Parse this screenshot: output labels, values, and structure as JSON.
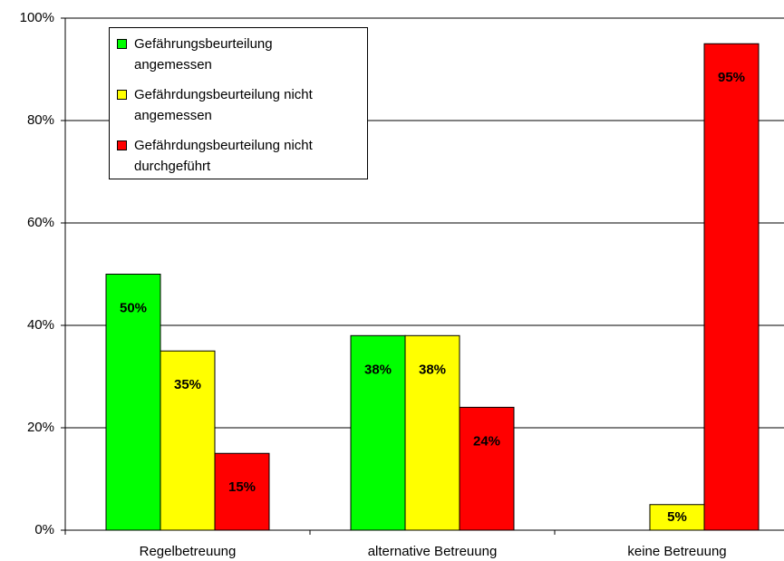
{
  "chart_data": {
    "type": "bar",
    "categories": [
      "Regelbetreuung",
      "alternative Betreuung",
      "keine Betreuung"
    ],
    "series": [
      {
        "name": "Gefährungsbeurteilung angemessen",
        "color": "#00ff00",
        "values": [
          50,
          38,
          null
        ],
        "value_labels": [
          "50%",
          "38%",
          null
        ]
      },
      {
        "name": "Gefährdungsbeurteilung nicht angemessen",
        "color": "#ffff00",
        "values": [
          35,
          38,
          5
        ],
        "value_labels": [
          "35%",
          "38%",
          "5%"
        ]
      },
      {
        "name": "Gefährdungsbeurteilung nicht durchgeführt",
        "color": "#ff0000",
        "values": [
          15,
          24,
          95
        ],
        "value_labels": [
          "15%",
          "24%",
          "95%"
        ]
      }
    ],
    "ylim": [
      0,
      100
    ],
    "yticks": [
      {
        "value": 0,
        "label": "0%"
      },
      {
        "value": 20,
        "label": "20%"
      },
      {
        "value": 40,
        "label": "40%"
      },
      {
        "value": 60,
        "label": "60%"
      },
      {
        "value": 80,
        "label": "80%"
      },
      {
        "value": 100,
        "label": "100%"
      }
    ],
    "grid": true,
    "legend": "top-left"
  }
}
